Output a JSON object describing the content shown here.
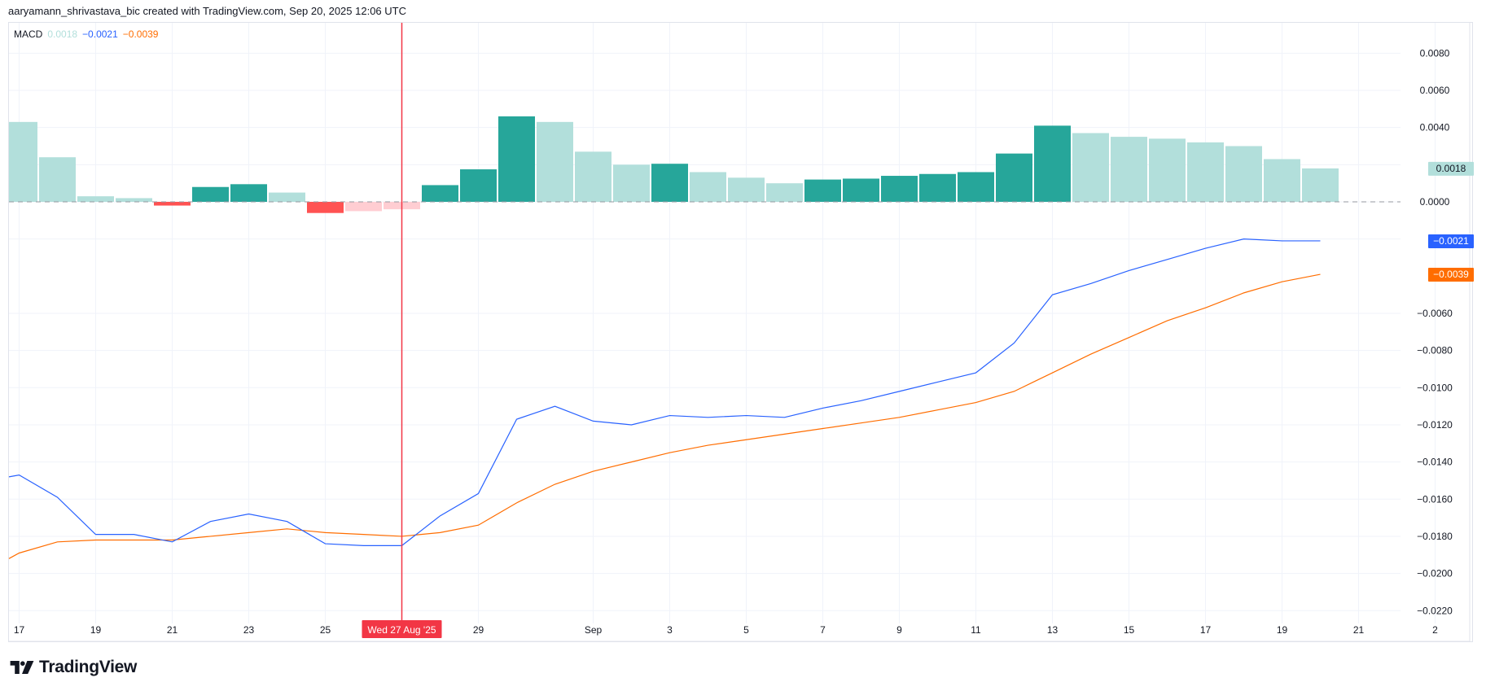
{
  "header": {
    "attribution": "aaryamann_shrivastava_bic created with TradingView.com, Sep 20, 2025 12:06 UTC"
  },
  "legend": {
    "name": "MACD",
    "histogram_value": "0.0018",
    "macd_value": "−0.0021",
    "signal_value": "−0.0039"
  },
  "crosshair": {
    "label": "Wed 27 Aug '25",
    "color": "#f23645",
    "index": 10
  },
  "price_tags": [
    {
      "label": "0.0018",
      "value": 0.0018,
      "bg": "#b2dfdb",
      "fg": "#131722"
    },
    {
      "label": "−0.0021",
      "value": -0.0021,
      "bg": "#2962ff",
      "fg": "#ffffff"
    },
    {
      "label": "−0.0039",
      "value": -0.0039,
      "bg": "#ff6d00",
      "fg": "#ffffff"
    }
  ],
  "logo": {
    "text": "TradingView"
  },
  "colors": {
    "hist_up_strong": "#26a69a",
    "hist_up_weak": "#b2dfdb",
    "hist_down_strong": "#ff5252",
    "hist_down_weak": "#ffcdd2",
    "macd_line": "#2962ff",
    "signal_line": "#ff6d00",
    "grid": "#f0f3fa"
  },
  "chart_data": {
    "type": "bar+line",
    "title": "MACD",
    "xlabel": "",
    "ylabel": "",
    "ylim": [
      -0.0235,
      0.0095
    ],
    "grid": true,
    "legend_position": "top-left",
    "x_ticks": [
      "17",
      "19",
      "21",
      "23",
      "25",
      "27",
      "29",
      "Sep",
      "3",
      "5",
      "7",
      "9",
      "11",
      "13",
      "15",
      "17",
      "19",
      "21",
      "2"
    ],
    "y_ticks": [
      "0.0080",
      "0.0060",
      "0.0040",
      "0.0000",
      "−0.0060",
      "−0.0080",
      "−0.0100",
      "−0.0120",
      "−0.0140",
      "−0.0160",
      "−0.0180",
      "−0.0200",
      "−0.0220"
    ],
    "y_tick_values": [
      0.008,
      0.006,
      0.004,
      0.0,
      -0.006,
      -0.008,
      -0.01,
      -0.012,
      -0.014,
      -0.016,
      -0.018,
      -0.02,
      -0.022
    ],
    "categories": [
      "Aug 17",
      "Aug 18",
      "Aug 19",
      "Aug 20",
      "Aug 21",
      "Aug 22",
      "Aug 23",
      "Aug 24",
      "Aug 25",
      "Aug 26",
      "Aug 27",
      "Aug 28",
      "Aug 29",
      "Aug 30",
      "Aug 31",
      "Sep 1",
      "Sep 2",
      "Sep 3",
      "Sep 4",
      "Sep 5",
      "Sep 6",
      "Sep 7",
      "Sep 8",
      "Sep 9",
      "Sep 10",
      "Sep 11",
      "Sep 12",
      "Sep 13",
      "Sep 14",
      "Sep 15",
      "Sep 16",
      "Sep 17",
      "Sep 18",
      "Sep 19",
      "Sep 20"
    ],
    "series": [
      {
        "name": "Histogram",
        "type": "bar",
        "values": [
          0.0043,
          0.0024,
          0.0003,
          0.0002,
          -0.0002,
          0.0008,
          0.00095,
          0.0005,
          -0.0006,
          -0.0005,
          -0.0004,
          0.0009,
          0.00175,
          0.0046,
          0.0043,
          0.0027,
          0.002,
          0.00205,
          0.0016,
          0.0013,
          0.001,
          0.0012,
          0.00125,
          0.0014,
          0.0015,
          0.0016,
          0.0026,
          0.0041,
          0.0037,
          0.0035,
          0.0034,
          0.0032,
          0.003,
          0.0023,
          0.0018
        ]
      },
      {
        "name": "MACD",
        "type": "line",
        "values": [
          -0.0147,
          -0.0159,
          -0.0179,
          -0.0179,
          -0.0183,
          -0.0172,
          -0.0168,
          -0.0172,
          -0.0184,
          -0.0185,
          -0.0185,
          -0.0169,
          -0.0157,
          -0.0117,
          -0.011,
          -0.0118,
          -0.012,
          -0.0115,
          -0.0116,
          -0.0115,
          -0.0116,
          -0.0111,
          -0.0107,
          -0.0102,
          -0.0097,
          -0.0092,
          -0.0076,
          -0.005,
          -0.0044,
          -0.0037,
          -0.0031,
          -0.0025,
          -0.002,
          -0.0021,
          -0.0021
        ]
      },
      {
        "name": "Signal",
        "type": "line",
        "values": [
          -0.0189,
          -0.0183,
          -0.0182,
          -0.0182,
          -0.0182,
          -0.018,
          -0.0178,
          -0.0176,
          -0.0178,
          -0.0179,
          -0.018,
          -0.0178,
          -0.0174,
          -0.0162,
          -0.0152,
          -0.0145,
          -0.014,
          -0.0135,
          -0.0131,
          -0.0128,
          -0.0125,
          -0.0122,
          -0.0119,
          -0.0116,
          -0.0112,
          -0.0108,
          -0.0102,
          -0.0092,
          -0.0082,
          -0.0073,
          -0.0064,
          -0.0057,
          -0.0049,
          -0.0043,
          -0.0039
        ]
      }
    ],
    "left_edge": {
      "macd": -0.0148,
      "signal": -0.0192
    }
  }
}
